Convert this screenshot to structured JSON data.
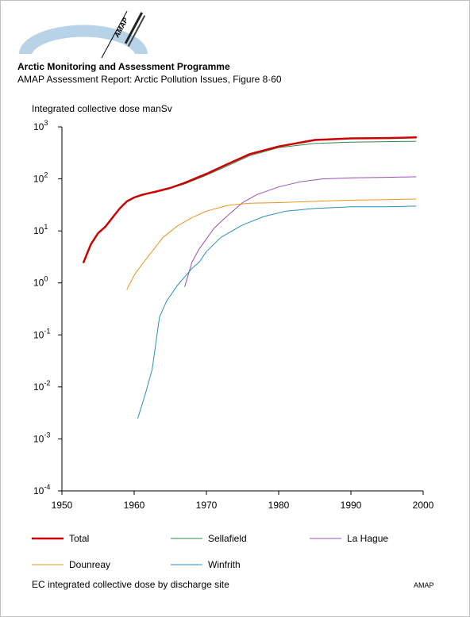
{
  "header": {
    "logo_text": "AMAP",
    "logo_icon": "amap-logo-arc",
    "title": "Arctic Monitoring and Assessment Programme",
    "subtitle": "AMAP Assessment Report: Arctic Pollution Issues, Figure 8·60"
  },
  "chart_data": {
    "type": "line",
    "title": "",
    "xlabel": "",
    "ylabel": "Integrated collective dose manSv",
    "xlim": [
      1950,
      2000
    ],
    "ylim": [
      0.0001,
      1000
    ],
    "yscale": "log",
    "grid": false,
    "legend_position": "bottom",
    "x_ticks": [
      1950,
      1960,
      1970,
      1980,
      1990,
      2000
    ],
    "y_ticks": [
      {
        "base": "10",
        "exp": "-4",
        "value": 0.0001
      },
      {
        "base": "10",
        "exp": "-3",
        "value": 0.001
      },
      {
        "base": "10",
        "exp": "-2",
        "value": 0.01
      },
      {
        "base": "10",
        "exp": "-1",
        "value": 0.1
      },
      {
        "base": "10",
        "exp": "0",
        "value": 1
      },
      {
        "base": "10",
        "exp": "1",
        "value": 10
      },
      {
        "base": "10",
        "exp": "2",
        "value": 100
      },
      {
        "base": "10",
        "exp": "3",
        "value": 1000
      }
    ],
    "series": [
      {
        "name": "Total",
        "color": "#cc0000",
        "width": 2.5,
        "x": [
          1953,
          1954,
          1955,
          1956,
          1957,
          1958,
          1959,
          1960,
          1961,
          1962,
          1963,
          1965,
          1967,
          1970,
          1973,
          1976,
          1980,
          1985,
          1990,
          1995,
          1999
        ],
        "y": [
          2.5,
          5.5,
          9,
          12,
          18,
          27,
          37,
          44,
          49,
          53,
          57,
          67,
          84,
          125,
          195,
          300,
          420,
          560,
          600,
          610,
          630
        ]
      },
      {
        "name": "Sellafield",
        "color": "#2e8b4a",
        "width": 1,
        "x": [
          1963,
          1965,
          1967,
          1970,
          1973,
          1976,
          1980,
          1985,
          1990,
          1995,
          1999
        ],
        "y": [
          57,
          66,
          80,
          118,
          180,
          280,
          400,
          480,
          510,
          520,
          530
        ]
      },
      {
        "name": "La Hague",
        "color": "#9c4fb5",
        "width": 1,
        "x": [
          1967,
          1968,
          1969,
          1970,
          1971,
          1972,
          1973,
          1975,
          1977,
          1980,
          1983,
          1986,
          1990,
          1995,
          1999
        ],
        "y": [
          0.85,
          2.5,
          4.5,
          7,
          11,
          15,
          20,
          35,
          50,
          70,
          88,
          100,
          105,
          107,
          110
        ]
      },
      {
        "name": "Dounreay",
        "color": "#e69520",
        "width": 1,
        "x": [
          1959,
          1960,
          1961,
          1962,
          1963,
          1964,
          1966,
          1968,
          1970,
          1973,
          1976,
          1980,
          1985,
          1990,
          1995,
          1999
        ],
        "y": [
          0.75,
          1.4,
          2.2,
          3.3,
          5,
          7.5,
          12.5,
          18,
          24,
          31,
          34,
          35,
          37,
          39,
          40,
          41
        ]
      },
      {
        "name": "Winfrith",
        "color": "#2a8fbf",
        "width": 1,
        "x": [
          1960.5,
          1961.5,
          1962.5,
          1963,
          1963.5,
          1964.5,
          1966,
          1968,
          1969,
          1970,
          1972,
          1975,
          1978,
          1981,
          1985,
          1990,
          1995,
          1999
        ],
        "y": [
          0.0025,
          0.007,
          0.022,
          0.07,
          0.22,
          0.45,
          0.9,
          1.9,
          2.5,
          4,
          7.5,
          13,
          19,
          24,
          27,
          29,
          29,
          30
        ]
      }
    ]
  },
  "footer": {
    "note": "EC integrated collective dose by discharge site",
    "brand": "AMAP"
  }
}
